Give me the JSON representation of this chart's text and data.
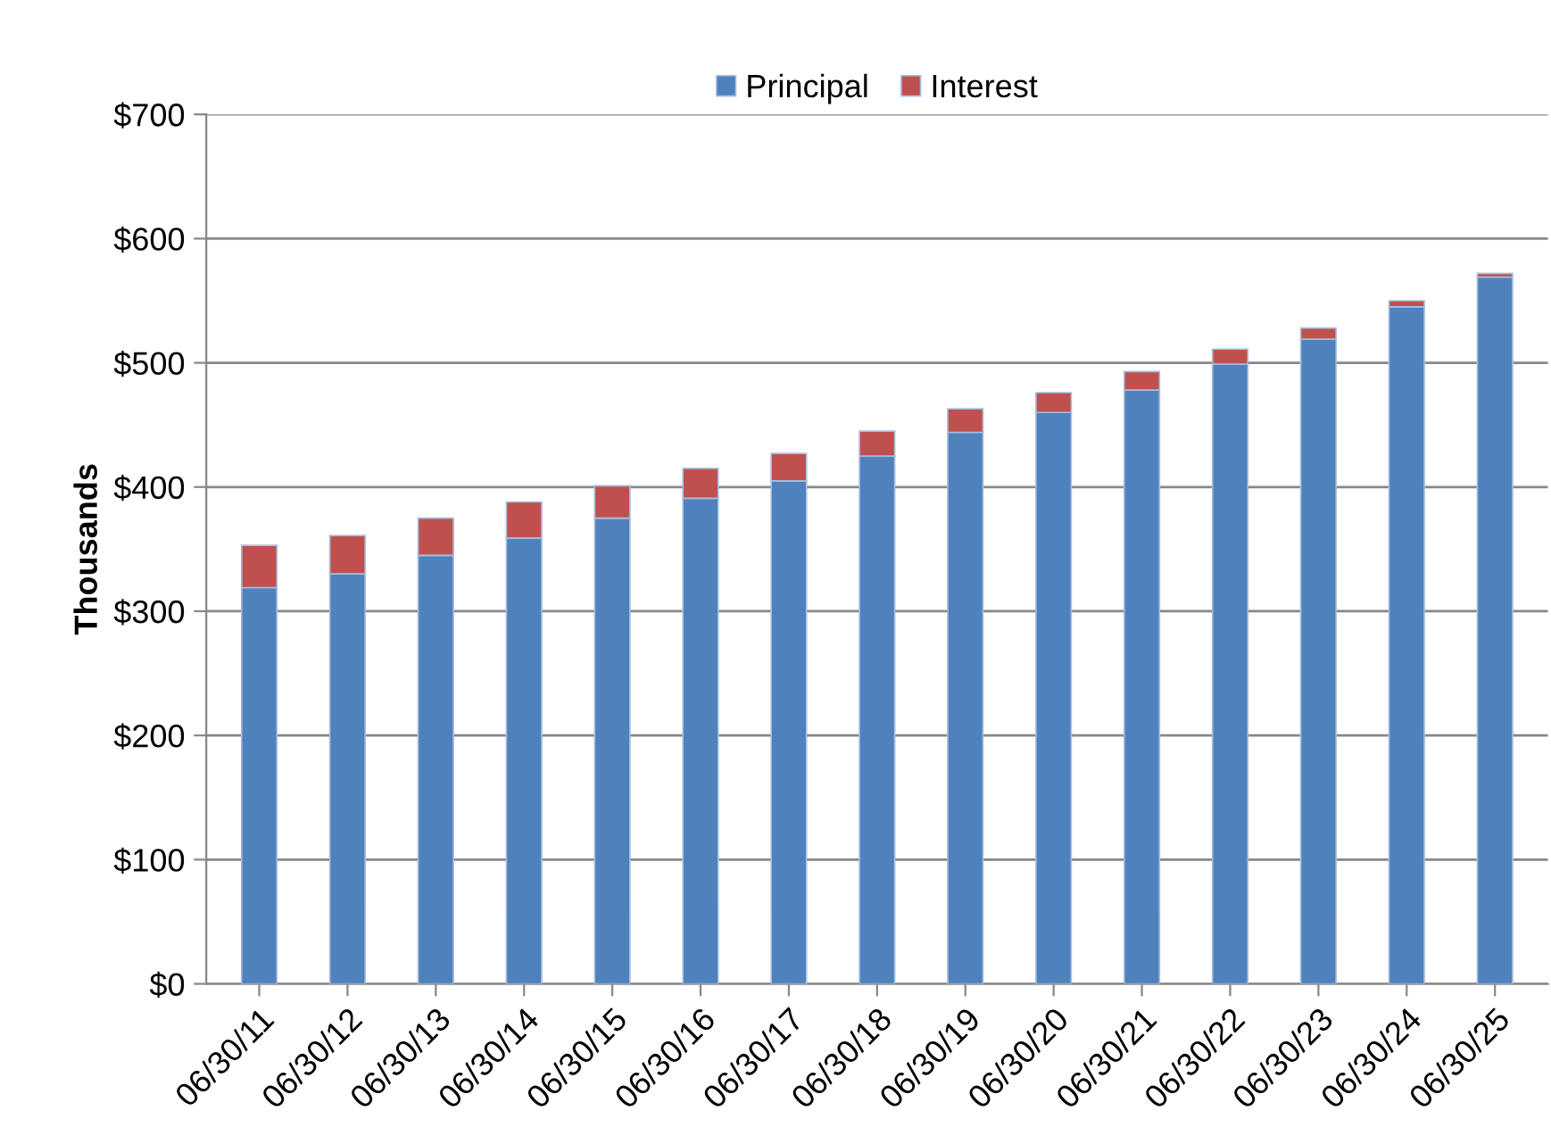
{
  "chart_data": {
    "type": "bar",
    "stacked": true,
    "ylabel": "Thousands",
    "categories": [
      "06/30/11",
      "06/30/12",
      "06/30/13",
      "06/30/14",
      "06/30/15",
      "06/30/16",
      "06/30/17",
      "06/30/18",
      "06/30/19",
      "06/30/20",
      "06/30/21",
      "06/30/22",
      "06/30/23",
      "06/30/24",
      "06/30/25"
    ],
    "series": [
      {
        "name": "Principal",
        "color": "#4f81bd",
        "values": [
          319,
          330,
          345,
          359,
          375,
          391,
          405,
          425,
          444,
          460,
          478,
          499,
          519,
          545,
          569
        ]
      },
      {
        "name": "Interest",
        "color": "#c0504d",
        "values": [
          34,
          31,
          30,
          29,
          26,
          24,
          22,
          20,
          19,
          16,
          15,
          12,
          9,
          5,
          3
        ]
      }
    ],
    "ylim": [
      0,
      700
    ],
    "yticks": [
      {
        "value": 0,
        "label": "$0"
      },
      {
        "value": 100,
        "label": "$100"
      },
      {
        "value": 200,
        "label": "$200"
      },
      {
        "value": 300,
        "label": "$300"
      },
      {
        "value": 400,
        "label": "$400"
      },
      {
        "value": 500,
        "label": "$500"
      },
      {
        "value": 600,
        "label": "$600"
      },
      {
        "value": 700,
        "label": "$700"
      }
    ],
    "grid": "y",
    "legend": "top"
  }
}
